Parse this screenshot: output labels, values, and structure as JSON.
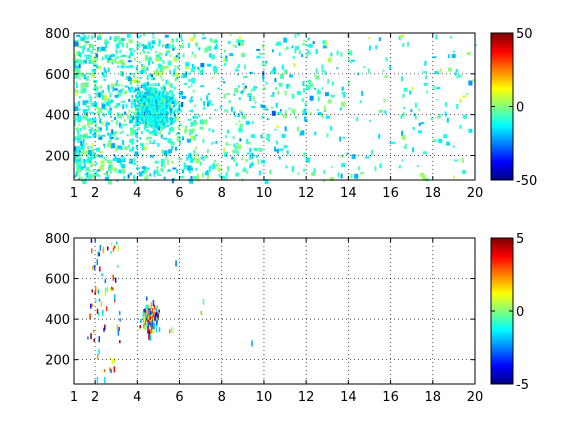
{
  "chart_data": [
    {
      "type": "heatmap",
      "title": "",
      "xlabel": "",
      "ylabel": "",
      "xlim": [
        1,
        20
      ],
      "ylim": [
        80,
        800
      ],
      "x_ticks": [
        1,
        2,
        4,
        6,
        8,
        10,
        12,
        14,
        16,
        18,
        20
      ],
      "y_ticks": [
        200,
        400,
        600,
        800
      ],
      "grid": true,
      "grid_style": "dotted",
      "colormap": "jet",
      "colorbar": {
        "min": -50,
        "max": 50,
        "ticks": [
          50,
          0,
          -50
        ]
      },
      "density": "dense speckle, densest at x 4-7, y 300-600; sparse vertical streaks toward x 20",
      "cluster": {
        "x": 4.7,
        "y": 440,
        "spread_x": 1.2,
        "spread_y": 140
      },
      "values_range": [
        -25,
        20
      ]
    },
    {
      "type": "heatmap",
      "title": "",
      "xlabel": "",
      "ylabel": "",
      "xlim": [
        1,
        20
      ],
      "ylim": [
        80,
        800
      ],
      "x_ticks": [
        1,
        2,
        4,
        6,
        8,
        10,
        12,
        14,
        16,
        18,
        20
      ],
      "y_ticks": [
        200,
        400,
        600,
        800
      ],
      "grid": true,
      "grid_style": "dotted",
      "colormap": "jet",
      "colorbar": {
        "min": -5,
        "max": 5,
        "ticks": [
          5,
          0,
          -5
        ]
      },
      "density": "very sparse; clusters near x 1.5-3.2 and x 4.3-5.5, few points up to x 9.5",
      "cluster": {
        "x": 4.6,
        "y": 420,
        "spread_x": 0.4,
        "spread_y": 80
      },
      "values_range": [
        -4,
        5
      ]
    }
  ]
}
